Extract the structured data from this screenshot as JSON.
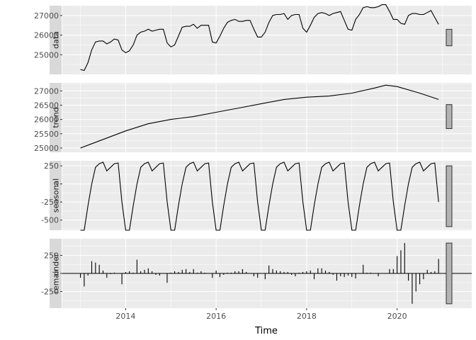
{
  "chart_data": {
    "type": "line",
    "xlabel": "Time",
    "x_ticks": [
      2014,
      2016,
      2018,
      2020
    ],
    "xlim": [
      2012.6,
      2021.65
    ],
    "time": {
      "start": 2013.0,
      "end": 2020.917,
      "frequency": 12
    },
    "panels": [
      {
        "name": "data",
        "ylim": [
          24000,
          27500
        ],
        "y_ticks": [
          25000,
          26000,
          27000
        ],
        "values": [
          24250,
          24200,
          24600,
          25250,
          25650,
          25700,
          25700,
          25550,
          25650,
          25800,
          25750,
          25250,
          25100,
          25200,
          25500,
          26000,
          26150,
          26200,
          26300,
          26200,
          26250,
          26300,
          26300,
          25600,
          25400,
          25500,
          25950,
          26400,
          26450,
          26450,
          26550,
          26350,
          26500,
          26500,
          26500,
          25650,
          25600,
          25950,
          26350,
          26650,
          26750,
          26800,
          26700,
          26700,
          26750,
          26750,
          26300,
          25900,
          25900,
          26150,
          26650,
          27000,
          27050,
          27050,
          27100,
          26800,
          27000,
          27050,
          27050,
          26350,
          26150,
          26500,
          26900,
          27100,
          27150,
          27100,
          27000,
          27100,
          27150,
          27200,
          26750,
          26300,
          26250,
          26800,
          27050,
          27400,
          27450,
          27400,
          27400,
          27450,
          27550,
          27550,
          27200,
          26800,
          26800,
          26600,
          26550,
          27000,
          27100,
          27100,
          27050,
          27050,
          27150,
          27250,
          26900,
          26550
        ]
      },
      {
        "name": "trend",
        "ylim": [
          24850,
          27280
        ],
        "y_ticks": [
          25000,
          25500,
          26000,
          26500,
          27000
        ],
        "points": [
          [
            2013.0,
            25000
          ],
          [
            2014.0,
            25600
          ],
          [
            2014.5,
            25850
          ],
          [
            2015.0,
            26000
          ],
          [
            2015.5,
            26100
          ],
          [
            2016.0,
            26250
          ],
          [
            2016.5,
            26400
          ],
          [
            2017.0,
            26550
          ],
          [
            2017.5,
            26700
          ],
          [
            2018.0,
            26780
          ],
          [
            2018.5,
            26820
          ],
          [
            2019.0,
            26920
          ],
          [
            2019.5,
            27100
          ],
          [
            2019.75,
            27200
          ],
          [
            2020.0,
            27150
          ],
          [
            2020.5,
            26920
          ],
          [
            2020.917,
            26700
          ]
        ]
      },
      {
        "name": "seasonal",
        "ylim": [
          -640,
          320
        ],
        "y_ticks": [
          -500,
          -250,
          0,
          250
        ],
        "monthly_pattern": [
          -640,
          -640,
          -300,
          0,
          230,
          280,
          300,
          180,
          230,
          280,
          290,
          -250
        ]
      },
      {
        "name": "remainder",
        "ylim": [
          -480,
          480
        ],
        "y_ticks": [
          -250,
          0,
          250
        ],
        "values": [
          -60,
          -180,
          -30,
          170,
          150,
          120,
          40,
          -60,
          -10,
          10,
          0,
          -150,
          20,
          30,
          10,
          190,
          30,
          50,
          70,
          30,
          -20,
          -30,
          0,
          -130,
          10,
          30,
          20,
          50,
          60,
          20,
          60,
          10,
          30,
          10,
          0,
          -60,
          40,
          -50,
          -20,
          10,
          10,
          30,
          30,
          60,
          20,
          0,
          -40,
          -60,
          0,
          -80,
          110,
          60,
          40,
          30,
          20,
          20,
          -20,
          -40,
          10,
          20,
          30,
          40,
          -80,
          70,
          70,
          40,
          20,
          -20,
          -100,
          -40,
          -50,
          -30,
          -50,
          -70,
          0,
          120,
          10,
          10,
          0,
          -40,
          0,
          0,
          60,
          60,
          240,
          320,
          420,
          -100,
          -420,
          -250,
          -150,
          -80,
          50,
          20,
          30,
          200
        ]
      }
    ]
  }
}
